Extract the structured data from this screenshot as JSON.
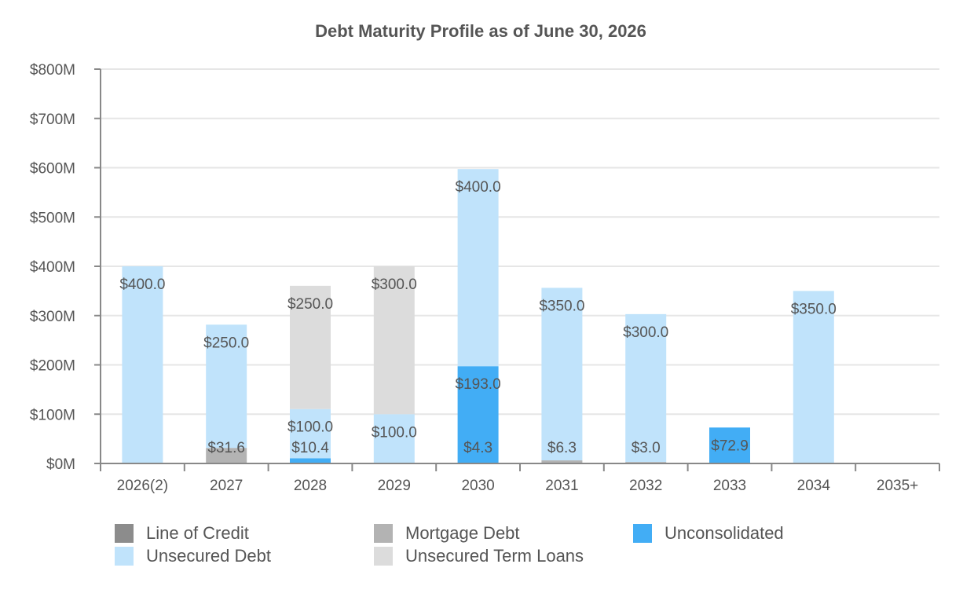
{
  "chart_data": {
    "type": "bar",
    "stacked": true,
    "title": "Debt Maturity Profile as of June 30, 2026",
    "xlabel": "",
    "ylabel": "",
    "ylim": [
      0,
      800
    ],
    "y_ticks": [
      0,
      100,
      200,
      300,
      400,
      500,
      600,
      700,
      800
    ],
    "y_tick_labels": [
      "$0M",
      "$100M",
      "$200M",
      "$300M",
      "$400M",
      "$500M",
      "$600M",
      "$700M",
      "$800M"
    ],
    "grid": true,
    "legend_position": "bottom",
    "categories": [
      "2026(2)",
      "2027",
      "2028",
      "2029",
      "2030",
      "2031",
      "2032",
      "2033",
      "2034",
      "2035+"
    ],
    "series": [
      {
        "name": "Line of Credit",
        "color": "#8c8c8c",
        "values": [
          0,
          0,
          0,
          0,
          0,
          0,
          0,
          0,
          0,
          0
        ],
        "labels": [
          "",
          "",
          "",
          "",
          "",
          "",
          "",
          "",
          "",
          ""
        ]
      },
      {
        "name": "Mortgage Debt",
        "color": "#b3b3b3",
        "values": [
          0,
          31.6,
          0,
          0,
          0,
          6.3,
          3.0,
          0,
          0,
          0
        ],
        "labels": [
          "",
          "$31.6",
          "",
          "",
          "",
          "$6.3",
          "$3.0",
          "",
          "",
          ""
        ]
      },
      {
        "name": "Unconsolidated",
        "color": "#42adf5",
        "values": [
          0,
          0,
          10.4,
          0,
          197.3,
          0,
          0,
          72.9,
          0,
          0
        ],
        "labels": [
          "",
          "",
          "$10.4",
          "",
          "$193.0|$4.3",
          "",
          "",
          "$72.9",
          "",
          ""
        ]
      },
      {
        "name": "Unsecured Debt",
        "color": "#c0e3fb",
        "values": [
          400,
          250,
          100,
          100,
          400,
          350,
          300,
          0,
          350,
          0
        ],
        "labels": [
          "$400.0",
          "$250.0",
          "$100.0",
          "$100.0",
          "$400.0",
          "$350.0",
          "$300.0",
          "",
          "$350.0",
          ""
        ]
      },
      {
        "name": "Unsecured Term Loans",
        "color": "#dcdcdc",
        "values": [
          0,
          0,
          250,
          300,
          0,
          0,
          0,
          0,
          0,
          0
        ],
        "labels": [
          "",
          "",
          "$250.0",
          "$300.0",
          "",
          "",
          "",
          "",
          "",
          ""
        ]
      }
    ],
    "legend_rows": [
      [
        "Line of Credit",
        "Mortgage Debt",
        "Unconsolidated"
      ],
      [
        "Unsecured Debt",
        "Unsecured Term Loans"
      ]
    ]
  }
}
